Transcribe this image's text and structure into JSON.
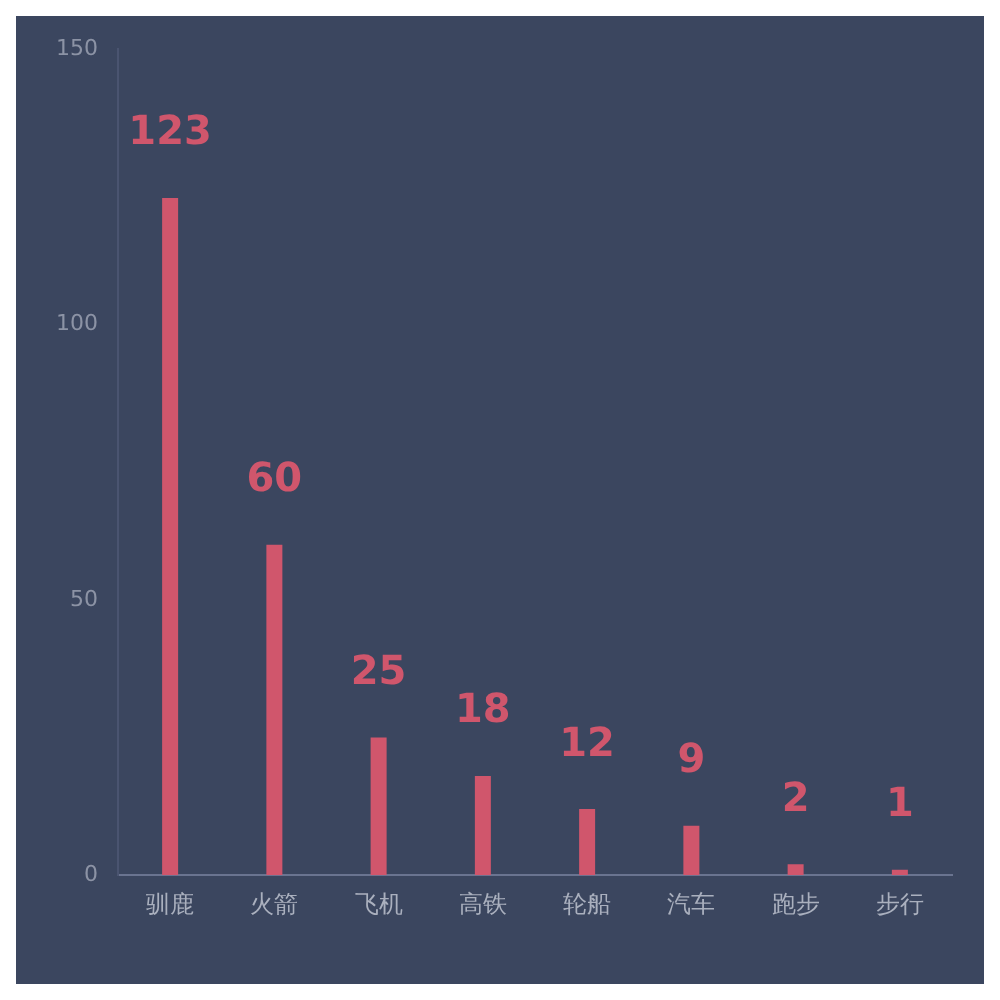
{
  "chart_data": {
    "type": "bar",
    "categories": [
      "驯鹿",
      "火箭",
      "飞机",
      "高铁",
      "轮船",
      "汽车",
      "跑步",
      "步行"
    ],
    "values": [
      123,
      60,
      25,
      18,
      12,
      9,
      2,
      1
    ],
    "color": "#d0566c",
    "ylim": [
      0,
      150
    ],
    "yticks": [
      0,
      50,
      100,
      150
    ],
    "grid": false,
    "data_labels": true
  }
}
